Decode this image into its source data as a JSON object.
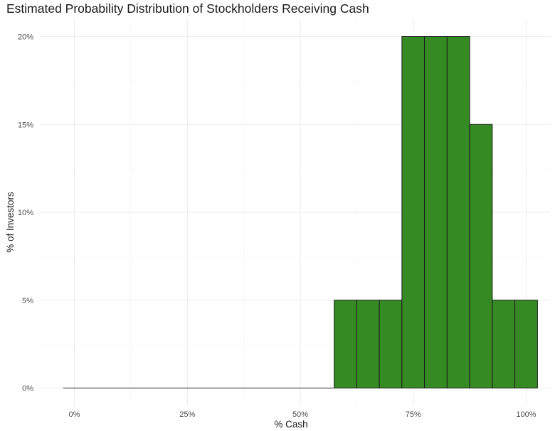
{
  "chart_data": {
    "type": "bar",
    "title": "Estimated Probability Distribution of Stockholders Receiving Cash",
    "xlabel": "% Cash",
    "ylabel": "% of Investors",
    "x_ticks": [
      {
        "value": 0,
        "label": "0%"
      },
      {
        "value": 25,
        "label": "25%"
      },
      {
        "value": 50,
        "label": "50%"
      },
      {
        "value": 75,
        "label": "75%"
      },
      {
        "value": 100,
        "label": "100%"
      }
    ],
    "y_ticks": [
      {
        "value": 0,
        "label": "0%"
      },
      {
        "value": 5,
        "label": "5%"
      },
      {
        "value": 10,
        "label": "10%"
      },
      {
        "value": 15,
        "label": "15%"
      },
      {
        "value": 20,
        "label": "20%"
      }
    ],
    "bin_width": 5,
    "bins": [
      {
        "center": 0,
        "value": 0
      },
      {
        "center": 5,
        "value": 0
      },
      {
        "center": 10,
        "value": 0
      },
      {
        "center": 15,
        "value": 0
      },
      {
        "center": 20,
        "value": 0
      },
      {
        "center": 25,
        "value": 0
      },
      {
        "center": 30,
        "value": 0
      },
      {
        "center": 35,
        "value": 0
      },
      {
        "center": 40,
        "value": 0
      },
      {
        "center": 45,
        "value": 0
      },
      {
        "center": 50,
        "value": 0
      },
      {
        "center": 55,
        "value": 0
      },
      {
        "center": 60,
        "value": 5
      },
      {
        "center": 65,
        "value": 5
      },
      {
        "center": 70,
        "value": 5
      },
      {
        "center": 75,
        "value": 20
      },
      {
        "center": 80,
        "value": 20
      },
      {
        "center": 85,
        "value": 20
      },
      {
        "center": 90,
        "value": 15
      },
      {
        "center": 95,
        "value": 5
      },
      {
        "center": 100,
        "value": 5
      }
    ],
    "xlim": [
      -3.5,
      103.5
    ],
    "ylim": [
      0,
      21
    ],
    "grid": true,
    "legend": "none",
    "colors": {
      "bar_fill": "#368a23",
      "bar_stroke": "#1a1a1a",
      "grid_major": "#ebebeb",
      "grid_minor": "#f4f4f4"
    }
  }
}
